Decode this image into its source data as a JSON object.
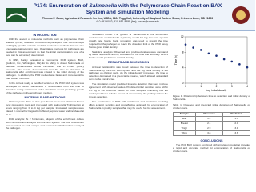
{
  "header": {
    "title_prefix": "P174: Enumeration of ",
    "title_italic": "Salmonella",
    "title_suffix": " with the Polymerase Chain Reaction BAX System and Simulation Modeling",
    "authors": "Thomas P. Oscar, Agricultural Research Service, USDA, 1124 Trigg Hall, University of Maryland Eastern Shore, Princess Anne, MD 21853",
    "contact": "410-651-6062; 410-651-8498 (fax); toscar@umes.edu"
  },
  "columns": [
    [
      {
        "heading": "INTRODUCTION",
        "paragraphs": [
          "With the advent of molecular methods such as polymerase chain reaction (PCR), detection of foodborne pathogens has become rapid and highly specific, and it is desirable to develop methods that can also enumerate pathogens in food. Quantitative methods for pathogens are needed in risk assessment so that the initial contamination level of a food can be accurately determined.",
          "In 1999, Bailey evaluated a commercial PCR system (BAX, Qualicon, Inc., Wilmington, DE) for its ability to detect Salmonella on naturally contaminated broiler carcasses and in chilled poultry products. The results demonstrated that the time to detection of Salmonella after enrichment was related to the initial density of the pathogen. In addition, the PCR method was faster and more sensitive than culture methods.",
          "In the current study, a modified version of the PCR BAX system was developed in which Salmonella is enumerated from the time to detection during enrichment and a simulation model predicting growth of the pathogen in the enrichment medium."
        ]
      },
      {
        "heading": "MATERIALS AND METHODS",
        "paragraphs": [
          "Chicken parts: Skin or skin plus breast meat was obtained from a local processing plant and inoculated with Salmonella Typhimurium at levels ranging from 0 to 4 log per sample. Inoculated samples were placed in stomacher bags with buffered peptone water and incubated at 37 C.",
          "PCR analysis: At 2 h intervals, aliquots of the enrichment culture were removed and assayed with the BAX system. The time to detection was recorded for each sample and compared with the initial density of the pathogen."
        ]
      }
    ],
    [
      {
        "heading": "",
        "paragraphs": [
          "Simulation model: The growth of Salmonella in the enrichment medium was modeled with a primary model for lag time and specific growth rate. Monte Carlo simulation was used to predict the time required for the pathogen to reach the detection limit of the PCR assay from a given initial density.",
          "Statistical analysis: Observed and predicted values were compared by linear regression and by calculation of the bias and accuracy factors for the model predictions of initial density."
        ]
      },
      {
        "heading": "RESULTS AND DISCUSSION",
        "paragraphs": [
          "A linear relationship was found between the time to detection of Salmonella by the PCR BAX system and the log initial density of the pathogen on chicken parts. As the initial density increased, the time to detection decreased in a predictable manner, which allowed a standard curve to be constructed.",
          "The simulation model predicted times to detection that were in close agreement with observed values. Predicted initial densities were within 0.5 log of the observed values for most samples, indicating that the model provides a reliable means of enumerating the pathogen from the time to detection.",
          "The combination of PCR with enrichment and simulation modeling offers a rapid, sensitive and cost effective approach for enumeration of Salmonella in poultry samples that may be useful for risk assessment."
        ]
      }
    ],
    [
      {
        "heading": "",
        "paragraphs": []
      }
    ]
  ],
  "figure": {
    "caption": "Figure 1. Relationship between time to detection and initial density of Salmonella.",
    "x_label": "Log initial density",
    "y_label": "Time (h)",
    "x": [
      0,
      0.5,
      1,
      1.5,
      2,
      2.5,
      3,
      3.5,
      4
    ],
    "y": [
      10,
      9.2,
      8.6,
      7.7,
      7.1,
      6.2,
      5.6,
      4.9,
      4.1
    ],
    "xlim": [
      0,
      4
    ],
    "ylim": [
      0,
      12
    ],
    "xticks": [
      0,
      1,
      2,
      3,
      4
    ],
    "yticks": [
      0,
      4,
      8,
      12
    ]
  },
  "table": {
    "caption": "Table 1. Observed and predicted initial densities of Salmonella on chicken parts.",
    "header": [
      "Sample",
      "Observed",
      "Predicted"
    ],
    "rows": [
      [
        "Skin",
        "1.2",
        "1.4"
      ],
      [
        "Breast",
        "2.1",
        "2.0"
      ],
      [
        "Thigh",
        "2.9",
        "3.1"
      ],
      [
        "Wing",
        "3.8",
        "3.6"
      ]
    ]
  },
  "conclusions": {
    "heading": "CONCLUSIONS",
    "text": "The PCR BAX system combined with simulation modeling provided a rapid and accurate method for enumeration of Salmonella on chicken parts."
  }
}
